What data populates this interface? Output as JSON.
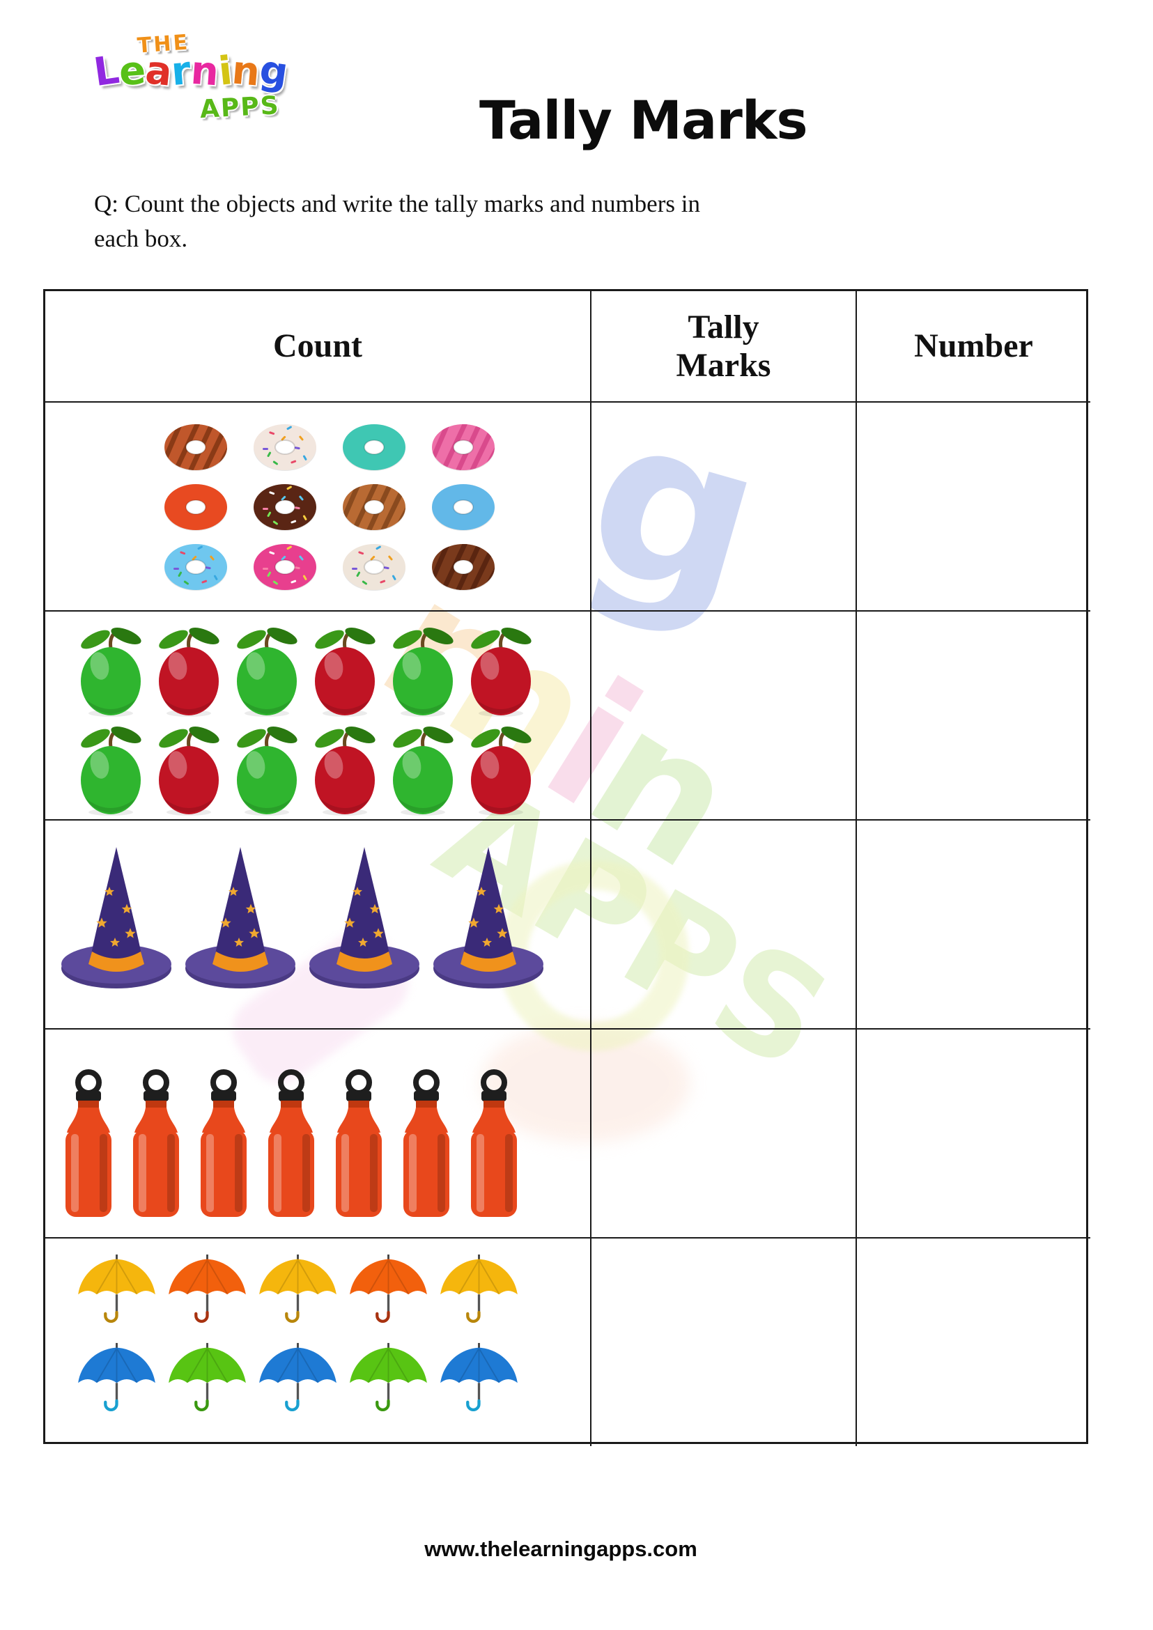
{
  "logo": {
    "the": "THE",
    "learning": [
      "L",
      "e",
      "a",
      "r",
      "n",
      "i",
      "n",
      "g"
    ],
    "learning_colors": [
      "#9028e0",
      "#58c018",
      "#e03028",
      "#18b0e8",
      "#e828a0",
      "#d4c414",
      "#e87818",
      "#2850e0"
    ],
    "apps": "APPS"
  },
  "title": "Tally Marks",
  "question": "Q: Count the objects and write the tally marks and numbers in\neach box.",
  "table": {
    "headers": [
      "Count",
      "Tally\nMarks",
      "Number"
    ],
    "rows": [
      {
        "object": "donuts",
        "label": "donuts",
        "count": 12,
        "tally": "",
        "number": "",
        "items": [
          {
            "glaze": "#c0572b",
            "style": "stripes",
            "stripe": "#8a3a16"
          },
          {
            "glaze": "#f2e6de",
            "style": "sprinkles"
          },
          {
            "glaze": "#3fc7b3",
            "style": "plain"
          },
          {
            "glaze": "#ee6fa8",
            "style": "stripes",
            "stripe": "#d94a8c"
          },
          {
            "glaze": "#e84a21",
            "style": "plain"
          },
          {
            "glaze": "#5a2514",
            "style": "sprinkles"
          },
          {
            "glaze": "#b96a33",
            "style": "stripes",
            "stripe": "#8a4a1e"
          },
          {
            "glaze": "#62b8e8",
            "style": "plain"
          },
          {
            "glaze": "#6fc7ef",
            "style": "sprinkles"
          },
          {
            "glaze": "#e83f8e",
            "style": "sprinkles"
          },
          {
            "glaze": "#efe5da",
            "style": "sprinkles"
          },
          {
            "glaze": "#7a3a1c",
            "style": "stripes",
            "stripe": "#5a2510"
          }
        ]
      },
      {
        "object": "apples",
        "label": "apples",
        "count": 12,
        "tally": "",
        "number": "",
        "colors": [
          "#2fb52f",
          "#c01424",
          "#2fb52f",
          "#c01424",
          "#2fb52f",
          "#c01424",
          "#2fb52f",
          "#c01424",
          "#2fb52f",
          "#c01424",
          "#2fb52f",
          "#c01424"
        ]
      },
      {
        "object": "hats",
        "label": "witch hats",
        "count": 4,
        "tally": "",
        "number": "",
        "cone": "#3a2a78",
        "band": "#f0921c",
        "brim": "#5c4a9c",
        "brim_dark": "#4a3a84",
        "star": "#f0a830"
      },
      {
        "object": "bottles",
        "label": "water bottles",
        "count": 7,
        "tally": "",
        "number": "",
        "body": "#e8481c",
        "collar": "#c03810",
        "cap": "#1e1e1e"
      },
      {
        "object": "umbrellas",
        "label": "umbrellas",
        "count": 10,
        "tally": "",
        "number": "",
        "canopies": [
          "#f5b60d",
          "#f2600d",
          "#f5b60d",
          "#f2600d",
          "#f5b60d",
          "#1e7ad4",
          "#58c413",
          "#1e7ad4",
          "#58c413",
          "#1e7ad4"
        ],
        "handles": [
          "#b8860b",
          "#a83210",
          "#b8860b",
          "#a83210",
          "#b8860b",
          "#18a0d0",
          "#3a9810",
          "#18a0d0",
          "#3a9810",
          "#18a0d0"
        ]
      }
    ]
  },
  "watermark": {
    "big_letter": "g",
    "letters": [
      "r",
      "n",
      "i",
      "n"
    ],
    "letter_colors": [
      "#f8d2a0",
      "#f6eaa8",
      "#f5bcd8",
      "#c9e8a8"
    ],
    "apps": "APPS"
  },
  "footer": "www.thelearningapps.com",
  "colors": {
    "table_border": "#1a1a1a",
    "text": "#111111",
    "title": "#0c0c0c"
  }
}
